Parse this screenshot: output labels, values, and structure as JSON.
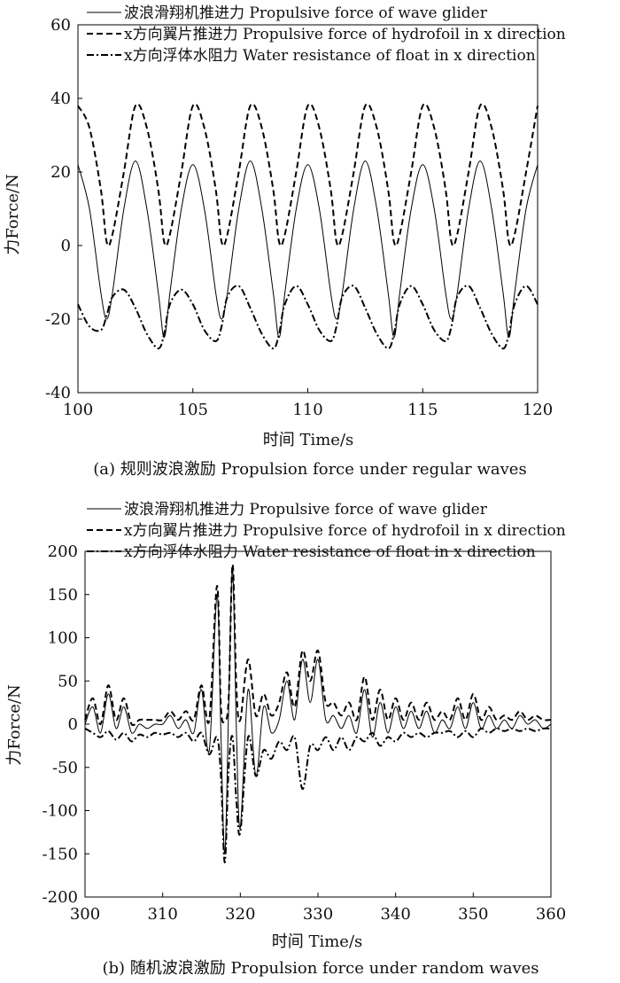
{
  "figure": {
    "panels": [
      {
        "caption": "(a) 规则波浪激励 Propulsion force under regular waves",
        "legend": [
          {
            "text": "波浪滑翔机推进力 Propulsive force of wave glider",
            "style": "solid"
          },
          {
            "text": "x方向翼片推进力 Propulsive force of hydrofoil in x direction",
            "style": "dashed"
          },
          {
            "text": "x方向浮体水阻力 Water resistance of float in x direction",
            "style": "dashdot"
          }
        ]
      },
      {
        "caption": "(b)  随机波浪激励 Propulsion force under random waves",
        "legend": [
          {
            "text": "波浪滑翔机推进力 Propulsive force of wave glider",
            "style": "solid"
          },
          {
            "text": "x方向翼片推进力 Propulsive force of hydrofoil in x direction",
            "style": "dashed"
          },
          {
            "text": "x方向浮体水阻力 Water resistance of float in x direction",
            "style": "dashdot"
          }
        ]
      }
    ]
  },
  "chart_data": [
    {
      "type": "line",
      "caption": "(a) 规则波浪激励 Propulsion force under regular waves",
      "xlabel": "时间 Time/s",
      "ylabel": "力Force/N",
      "xlim": [
        100,
        120
      ],
      "ylim": [
        -40,
        60
      ],
      "xticks": [
        100,
        105,
        110,
        115,
        120
      ],
      "yticks": [
        -40,
        -20,
        0,
        20,
        40,
        60
      ],
      "grid": false,
      "legend_position": "top",
      "x": [
        100,
        100.5,
        101,
        101.25,
        101.5,
        102,
        102.5,
        103,
        103.5,
        103.75,
        104,
        104.5,
        105,
        105.5,
        106,
        106.25,
        106.5,
        107,
        107.5,
        108,
        108.5,
        108.75,
        109,
        109.5,
        110,
        110.5,
        111,
        111.25,
        111.5,
        112,
        112.5,
        113,
        113.5,
        113.75,
        114,
        114.5,
        115,
        115.5,
        116,
        116.25,
        116.5,
        117,
        117.5,
        118,
        118.5,
        118.75,
        119,
        119.5,
        120
      ],
      "series": [
        {
          "name": "波浪滑翔机推进力 Propulsive force of wave glider",
          "style": "solid",
          "values": [
            22,
            10,
            -13,
            -20,
            -13,
            10,
            23,
            10,
            -13,
            -25,
            -13,
            10,
            22,
            10,
            -13,
            -20,
            -13,
            10,
            23,
            10,
            -13,
            -25,
            -13,
            10,
            22,
            10,
            -13,
            -20,
            -13,
            10,
            23,
            10,
            -13,
            -25,
            -13,
            10,
            22,
            10,
            -13,
            -20,
            -13,
            10,
            23,
            10,
            -13,
            -25,
            -13,
            10,
            22
          ]
        },
        {
          "name": "x方向翼片推进力 Propulsive force of hydrofoil in x direction",
          "style": "dashed",
          "values": [
            38,
            32,
            15,
            1,
            3,
            20,
            38,
            32,
            15,
            1,
            3,
            20,
            38,
            32,
            15,
            1,
            3,
            20,
            38,
            32,
            15,
            1,
            3,
            20,
            38,
            32,
            15,
            1,
            3,
            20,
            38,
            32,
            15,
            1,
            3,
            20,
            38,
            32,
            15,
            1,
            3,
            20,
            38,
            32,
            15,
            1,
            3,
            20,
            38
          ]
        },
        {
          "name": "x方向浮体水阻力 Water resistance of float in x direction",
          "style": "dashdot",
          "values": [
            -16,
            -22,
            -23,
            -19,
            -14,
            -12,
            -17,
            -24,
            -28,
            -24,
            -16,
            -12,
            -16,
            -23,
            -26,
            -22,
            -14,
            -11,
            -17,
            -24,
            -28,
            -24,
            -16,
            -11,
            -16,
            -23,
            -26,
            -22,
            -14,
            -11,
            -17,
            -24,
            -28,
            -24,
            -16,
            -11,
            -16,
            -23,
            -26,
            -22,
            -14,
            -11,
            -17,
            -24,
            -28,
            -24,
            -16,
            -11,
            -16
          ]
        }
      ]
    },
    {
      "type": "line",
      "caption": "(b)  随机波浪激励 Propulsion force under random waves",
      "xlabel": "时间 Time/s",
      "ylabel": "力Force/N",
      "xlim": [
        300,
        360
      ],
      "ylim": [
        -200,
        200
      ],
      "xticks": [
        300,
        310,
        320,
        330,
        340,
        350,
        360
      ],
      "yticks": [
        -200,
        -150,
        -100,
        -50,
        0,
        50,
        100,
        150,
        200
      ],
      "grid": false,
      "legend_position": "top",
      "x": [
        300,
        301,
        302,
        303,
        304,
        305,
        306,
        307,
        308,
        309,
        310,
        311,
        312,
        313,
        314,
        315,
        316,
        317,
        317.5,
        318,
        318.5,
        319,
        319.5,
        320,
        321,
        322,
        323,
        324,
        325,
        326,
        327,
        328,
        329,
        330,
        331,
        332,
        333,
        334,
        335,
        336,
        337,
        338,
        339,
        340,
        341,
        342,
        343,
        344,
        345,
        346,
        347,
        348,
        349,
        350,
        351,
        352,
        353,
        354,
        355,
        356,
        357,
        358,
        359,
        360
      ],
      "series": [
        {
          "name": "波浪滑翔机推进力 Propulsive force of wave glider",
          "style": "solid",
          "values": [
            0,
            20,
            -10,
            35,
            -5,
            20,
            -10,
            0,
            -5,
            0,
            0,
            10,
            -5,
            5,
            -10,
            40,
            -30,
            150,
            -10,
            -150,
            20,
            180,
            -10,
            -120,
            40,
            -60,
            20,
            -10,
            5,
            50,
            5,
            75,
            25,
            75,
            5,
            10,
            -5,
            10,
            -10,
            40,
            -15,
            25,
            -10,
            20,
            -5,
            15,
            -5,
            15,
            -10,
            5,
            -5,
            20,
            -5,
            25,
            -5,
            10,
            -5,
            5,
            -5,
            10,
            0,
            5,
            -5,
            0
          ]
        },
        {
          "name": "x方向翼片推进力 Propulsive force of hydrofoil in x direction",
          "style": "dashed",
          "values": [
            5,
            30,
            0,
            45,
            5,
            30,
            0,
            5,
            5,
            5,
            5,
            15,
            5,
            15,
            5,
            45,
            5,
            160,
            20,
            5,
            30,
            185,
            40,
            5,
            75,
            10,
            35,
            10,
            25,
            60,
            20,
            85,
            50,
            85,
            25,
            25,
            10,
            25,
            5,
            55,
            5,
            40,
            5,
            30,
            5,
            25,
            5,
            25,
            5,
            15,
            5,
            30,
            5,
            35,
            5,
            20,
            5,
            10,
            5,
            15,
            5,
            10,
            5,
            5
          ]
        },
        {
          "name": "x方向浮体水阻力 Water resistance of float in x direction",
          "style": "dashdot",
          "values": [
            -5,
            -10,
            -15,
            -8,
            -18,
            -10,
            -20,
            -12,
            -15,
            -10,
            -12,
            -10,
            -15,
            -10,
            -20,
            -10,
            -35,
            -15,
            -60,
            -160,
            -50,
            -15,
            -90,
            -125,
            -15,
            -60,
            -30,
            -40,
            -20,
            -30,
            -15,
            -75,
            -25,
            -30,
            -15,
            -30,
            -15,
            -30,
            -15,
            -20,
            -10,
            -25,
            -15,
            -20,
            -10,
            -15,
            -10,
            -15,
            -10,
            -10,
            -8,
            -15,
            -8,
            -15,
            -5,
            -10,
            -5,
            -8,
            -5,
            -8,
            -5,
            -8,
            -5,
            -5
          ]
        }
      ]
    }
  ]
}
